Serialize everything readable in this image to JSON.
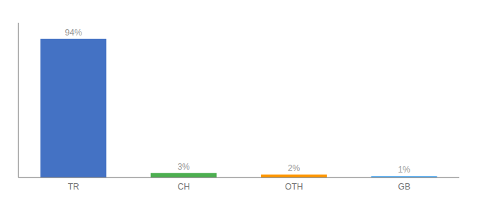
{
  "chart_data": {
    "type": "bar",
    "categories": [
      "TR",
      "CH",
      "OTH",
      "GB"
    ],
    "values": [
      94,
      3,
      2,
      1
    ],
    "value_labels": [
      "94%",
      "3%",
      "2%",
      "1%"
    ],
    "colors": [
      "#4472c4",
      "#4caf50",
      "#ff9800",
      "#64b5f6"
    ],
    "ylim": [
      0,
      105
    ],
    "data_labels": true,
    "tick_labels": "x",
    "grid": false
  }
}
